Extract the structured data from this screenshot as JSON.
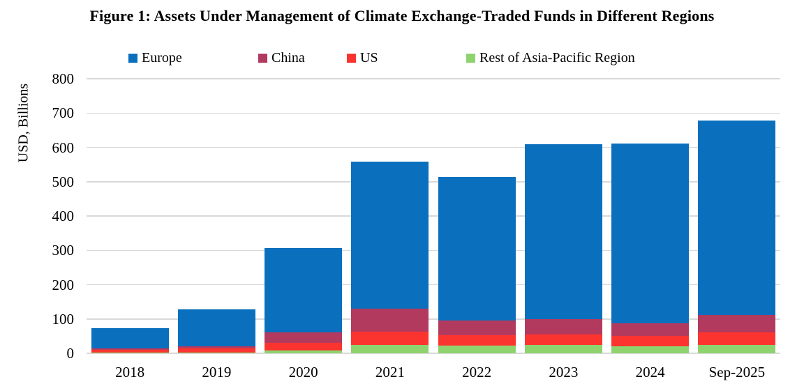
{
  "figure": {
    "title": "Figure 1: Assets Under Management of Climate Exchange-Traded Funds in Different Regions",
    "y_axis_title": "USD, Billions"
  },
  "colors": {
    "europe": "#0A70BE",
    "china": "#B23A5E",
    "us": "#FC3430",
    "rest_of_asia_pacific": "#8FD36F",
    "gridline": "#D9D9D9",
    "text": "#000000",
    "background": "#FFFFFF"
  },
  "legend": {
    "items": [
      "Europe",
      "China",
      "US",
      "Rest of Asia-Pacific Region"
    ]
  },
  "chart_data": {
    "type": "bar",
    "stacked": true,
    "title": "Figure 1: Assets Under Management of Climate Exchange-Traded Funds in Different Regions",
    "xlabel": "",
    "ylabel": "USD, Billions",
    "categories": [
      "2018",
      "2019",
      "2020",
      "2021",
      "2022",
      "2023",
      "2024",
      "Sep-2025"
    ],
    "series": [
      {
        "name": "Europe",
        "color": "#0A70BE",
        "values": [
          60,
          106,
          247,
          429,
          417,
          511,
          523,
          566
        ]
      },
      {
        "name": "China",
        "color": "#B23A5E",
        "values": [
          4,
          6,
          30,
          66,
          44,
          44,
          37,
          51
        ]
      },
      {
        "name": "US",
        "color": "#FC3430",
        "values": [
          8,
          12,
          22,
          39,
          30,
          30,
          30,
          37
        ]
      },
      {
        "name": "Rest of Asia-Pacific Region",
        "color": "#8FD36F",
        "values": [
          2,
          3,
          8,
          24,
          22,
          25,
          21,
          24
        ]
      }
    ],
    "totals": [
      74,
      127,
      307,
      558,
      513,
      610,
      611,
      678
    ],
    "stack_order_bottom_to_top": [
      "Rest of Asia-Pacific Region",
      "US",
      "China",
      "Europe"
    ],
    "ylim": [
      0,
      800
    ],
    "ytick_step": 100,
    "yticks": [
      0,
      100,
      200,
      300,
      400,
      500,
      600,
      700,
      800
    ],
    "grid": true,
    "legend_position": "top"
  }
}
